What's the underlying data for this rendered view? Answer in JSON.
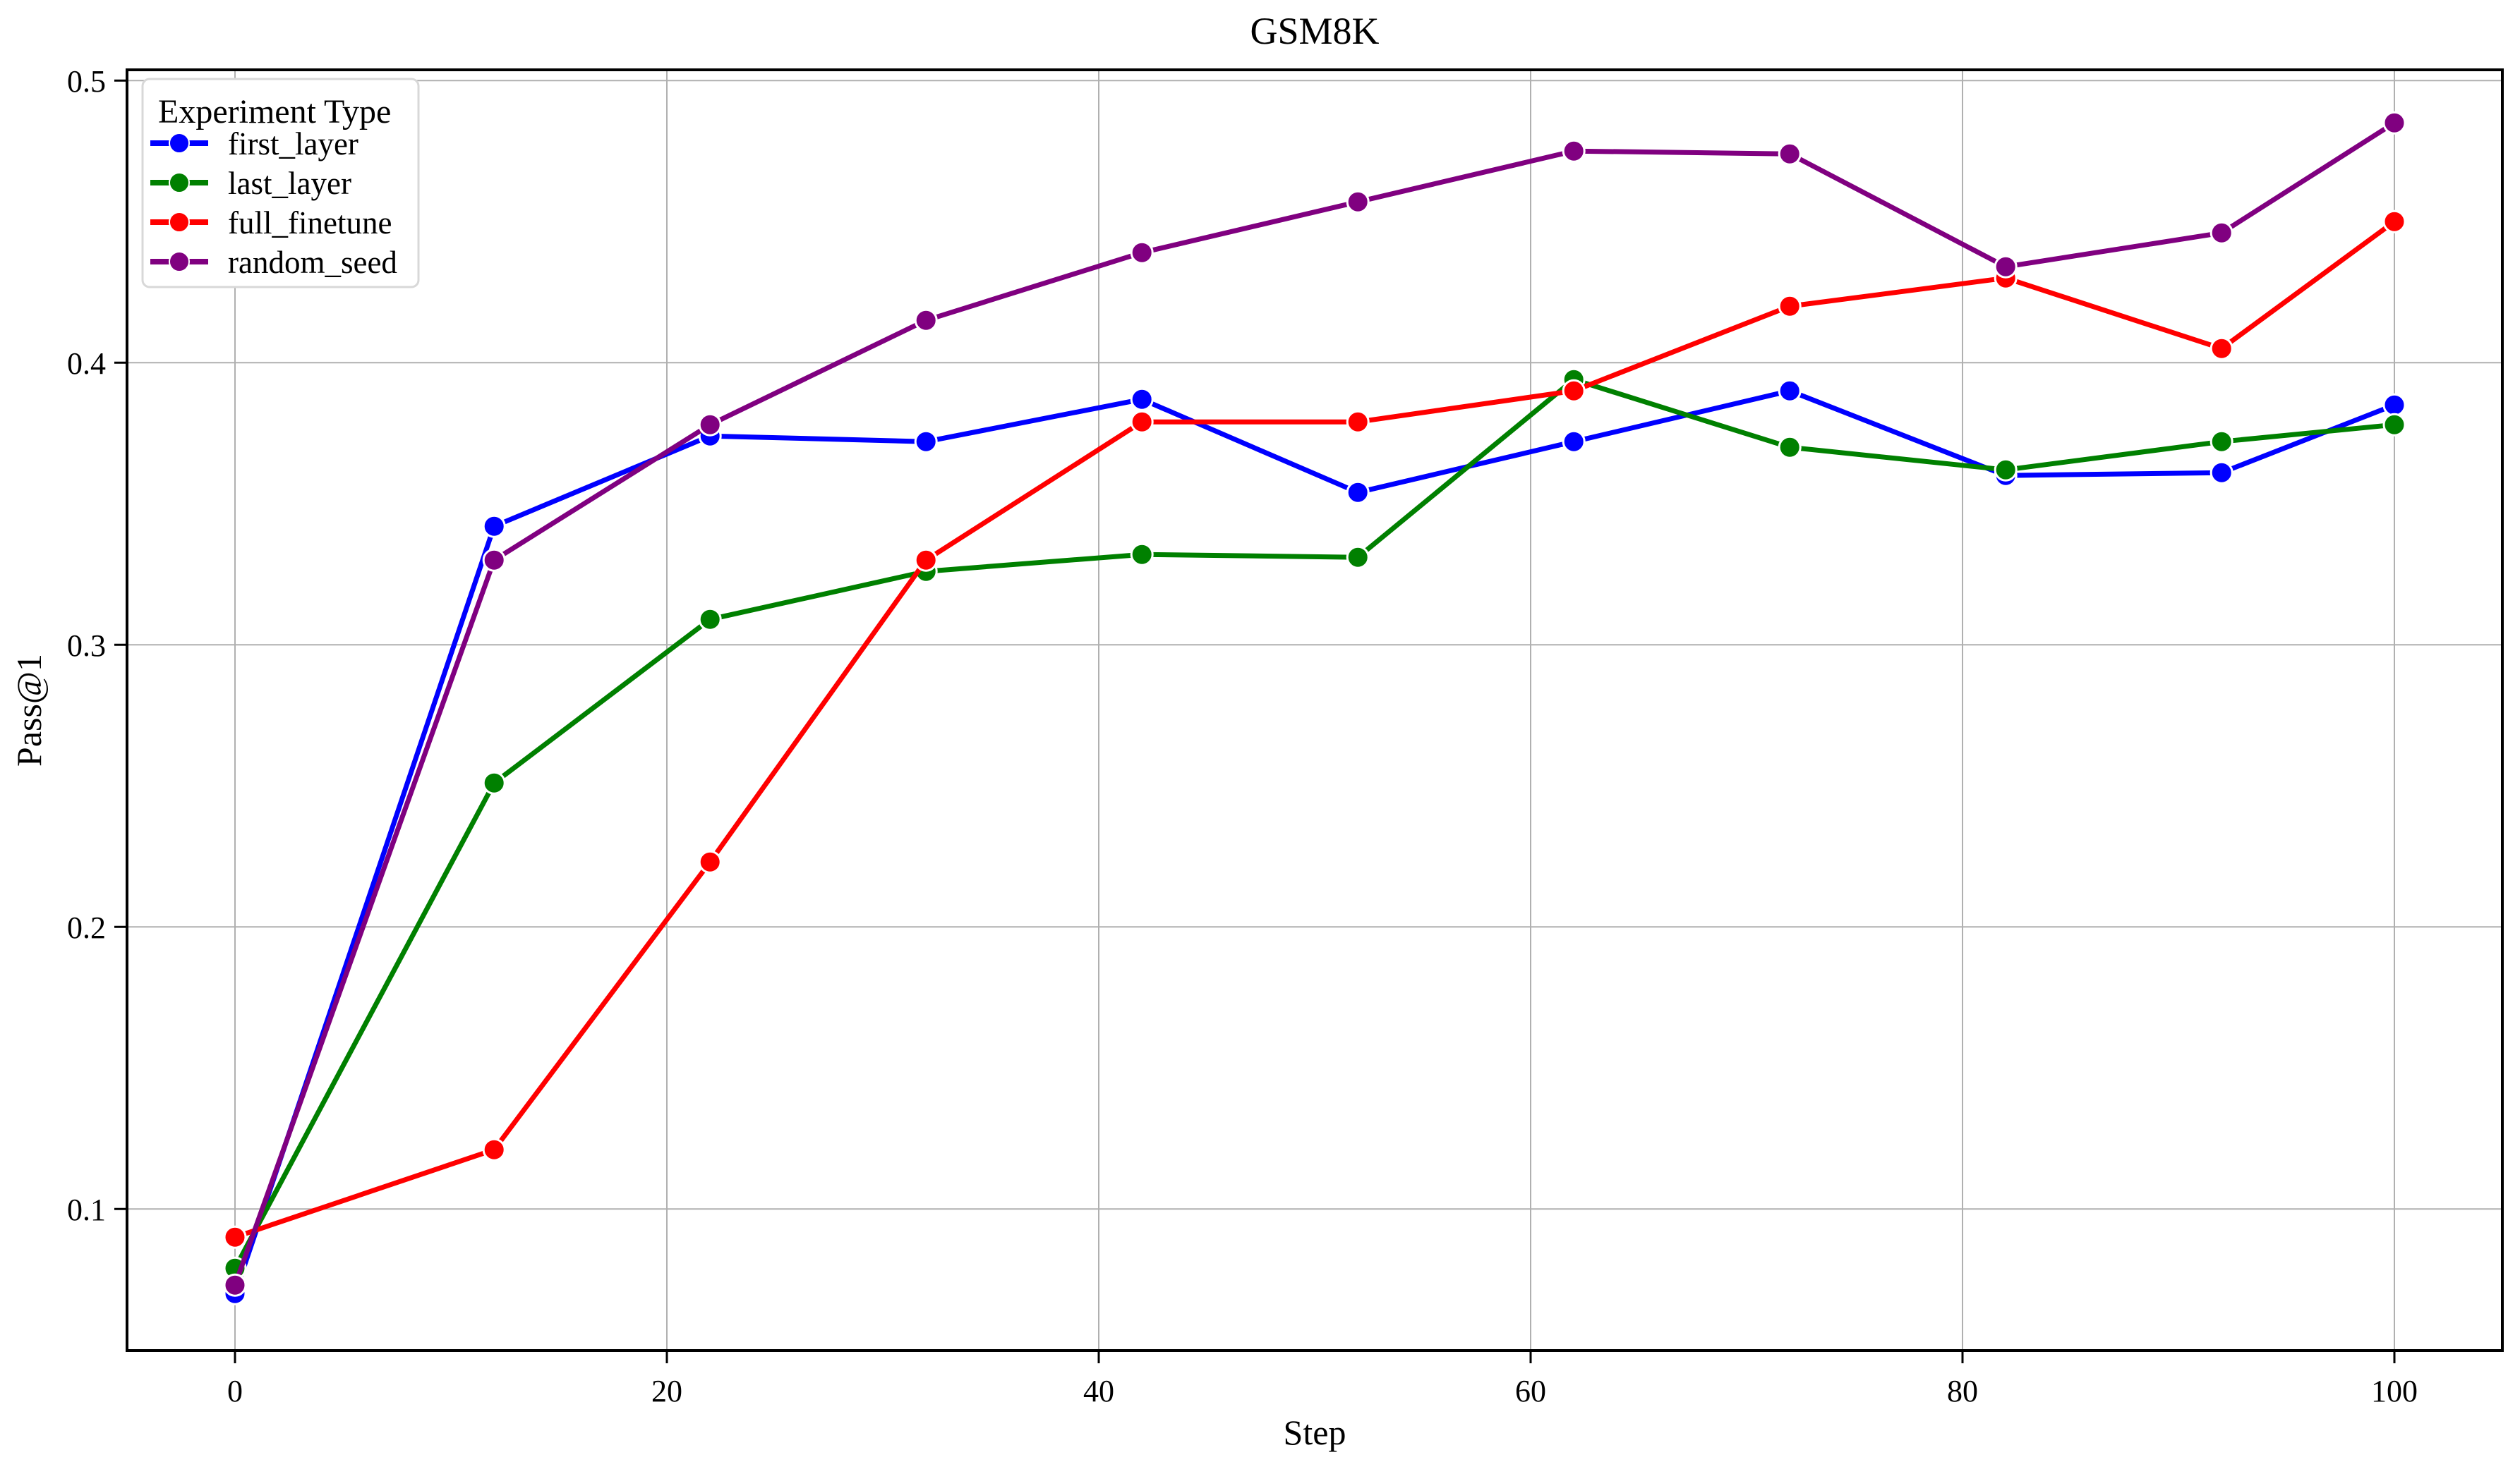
{
  "chart_data": {
    "type": "line",
    "title": "GSM8K",
    "xlabel": "Step",
    "ylabel": "Pass@1",
    "legend_title": "Experiment Type",
    "legend_position": "upper left",
    "grid": true,
    "x": [
      0,
      12,
      22,
      32,
      42,
      52,
      62,
      72,
      82,
      92,
      100
    ],
    "xticks": [
      0,
      20,
      40,
      60,
      80,
      100
    ],
    "yticks": [
      0.1,
      0.2,
      0.3,
      0.4,
      0.5
    ],
    "xlim": [
      -5,
      105
    ],
    "ylim": [
      0.0498,
      0.5038
    ],
    "series": [
      {
        "name": "first_layer",
        "color": "#0000ff",
        "values": [
          0.07,
          0.342,
          0.374,
          0.372,
          0.387,
          0.354,
          0.372,
          0.39,
          0.36,
          0.361,
          0.385
        ]
      },
      {
        "name": "last_layer",
        "color": "#008000",
        "values": [
          0.079,
          0.251,
          0.309,
          0.326,
          0.332,
          0.331,
          0.394,
          0.37,
          0.362,
          0.372,
          0.378
        ]
      },
      {
        "name": "full_finetune",
        "color": "#ff0000",
        "values": [
          0.09,
          0.121,
          0.223,
          0.33,
          0.379,
          0.379,
          0.39,
          0.42,
          0.43,
          0.405,
          0.45
        ]
      },
      {
        "name": "random_seed",
        "color": "#800080",
        "values": [
          0.073,
          0.33,
          0.378,
          0.415,
          0.439,
          0.457,
          0.475,
          0.474,
          0.434,
          0.446,
          0.485
        ]
      }
    ]
  },
  "colors": {
    "background": "#ffffff",
    "grid": "#b0b0b0",
    "spine": "#000000",
    "tick": "#000000",
    "legend_border": "#d8d8d8",
    "legend_bg": "#ffffff",
    "marker_edge": "#ffffff"
  }
}
